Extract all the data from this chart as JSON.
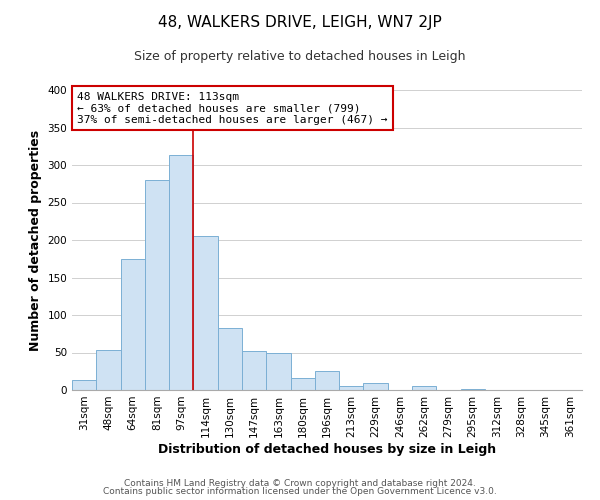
{
  "title": "48, WALKERS DRIVE, LEIGH, WN7 2JP",
  "subtitle": "Size of property relative to detached houses in Leigh",
  "xlabel": "Distribution of detached houses by size in Leigh",
  "ylabel": "Number of detached properties",
  "bar_labels": [
    "31sqm",
    "48sqm",
    "64sqm",
    "81sqm",
    "97sqm",
    "114sqm",
    "130sqm",
    "147sqm",
    "163sqm",
    "180sqm",
    "196sqm",
    "213sqm",
    "229sqm",
    "246sqm",
    "262sqm",
    "279sqm",
    "295sqm",
    "312sqm",
    "328sqm",
    "345sqm",
    "361sqm"
  ],
  "bar_values": [
    13,
    53,
    175,
    280,
    313,
    205,
    83,
    52,
    50,
    16,
    25,
    5,
    10,
    0,
    6,
    0,
    2,
    0,
    0,
    0,
    0
  ],
  "bar_color": "#cfe2f3",
  "bar_edge_color": "#7bafd4",
  "vline_x_index": 5,
  "vline_color": "#cc0000",
  "annotation_line1": "48 WALKERS DRIVE: 113sqm",
  "annotation_line2": "← 63% of detached houses are smaller (799)",
  "annotation_line3": "37% of semi-detached houses are larger (467) →",
  "annotation_box_color": "#ffffff",
  "annotation_box_edge": "#cc0000",
  "footer_line1": "Contains HM Land Registry data © Crown copyright and database right 2024.",
  "footer_line2": "Contains public sector information licensed under the Open Government Licence v3.0.",
  "ylim": [
    0,
    400
  ],
  "yticks": [
    0,
    50,
    100,
    150,
    200,
    250,
    300,
    350,
    400
  ],
  "bg_color": "#ffffff",
  "grid_color": "#d0d0d0",
  "title_fontsize": 11,
  "subtitle_fontsize": 9,
  "axis_label_fontsize": 9,
  "tick_fontsize": 7.5,
  "annotation_fontsize": 8,
  "footer_fontsize": 6.5
}
